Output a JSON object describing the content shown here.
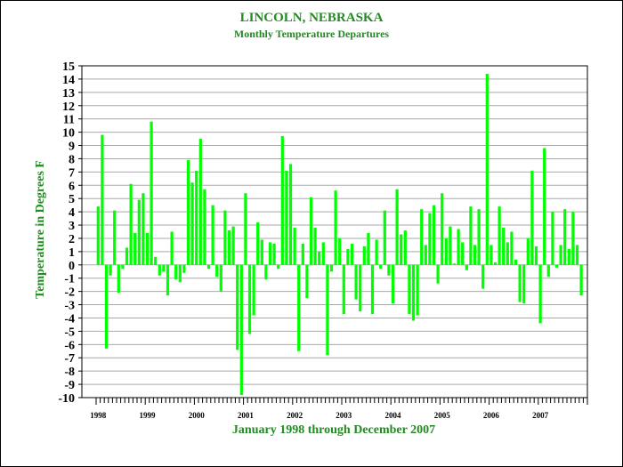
{
  "colors": {
    "title": "#228B22",
    "bar": "#00FF00",
    "grid": "#A9A9A9",
    "axis": "#000000",
    "frame": "#000000"
  },
  "chart_data": {
    "type": "bar",
    "title": "LINCOLN, NEBRASKA",
    "subtitle": "Monthly Temperature Departures",
    "xlabel": "January 1998 through December 2007",
    "ylabel": "Temperature in Degrees F",
    "ylim": [
      -10,
      15
    ],
    "yticks": [
      15,
      14,
      13,
      12,
      11,
      10,
      9,
      8,
      7,
      6,
      5,
      4,
      3,
      2,
      1,
      0,
      -1,
      -2,
      -3,
      -4,
      -5,
      -6,
      -7,
      -8,
      -9,
      -10
    ],
    "grid": true,
    "year_labels": [
      "1998",
      "1999",
      "2000",
      "2001",
      "2002",
      "2003",
      "2004",
      "2005",
      "2006",
      "2007"
    ],
    "values": [
      4.4,
      9.8,
      -6.3,
      -0.8,
      4.1,
      -2.1,
      -0.3,
      1.3,
      6.1,
      2.4,
      4.9,
      5.4,
      2.4,
      10.8,
      0.6,
      -0.8,
      -0.5,
      -2.3,
      2.5,
      -1.1,
      -1.3,
      -0.6,
      7.9,
      6.2,
      7.1,
      9.5,
      5.7,
      -0.3,
      4.5,
      -0.9,
      -2.0,
      4.1,
      2.6,
      2.9,
      -6.4,
      -9.8,
      5.4,
      -5.2,
      -3.8,
      3.2,
      1.9,
      -1.1,
      1.7,
      1.6,
      -0.3,
      9.7,
      7.1,
      7.6,
      2.8,
      -6.5,
      1.6,
      -2.5,
      5.1,
      2.8,
      1.0,
      1.7,
      -6.8,
      -0.5,
      5.6,
      2.0,
      -3.7,
      1.2,
      1.6,
      -2.6,
      -3.5,
      1.4,
      2.4,
      -3.7,
      1.9,
      -0.3,
      4.1,
      -0.8,
      -2.9,
      5.7,
      2.3,
      2.6,
      -3.7,
      -4.2,
      -3.8,
      4.2,
      1.5,
      3.9,
      4.5,
      -1.4,
      5.4,
      2.0,
      2.9,
      0.1,
      2.7,
      1.7,
      -0.4,
      4.4,
      1.5,
      4.2,
      -1.8,
      14.4,
      1.5,
      0.2,
      4.4,
      2.8,
      1.7,
      2.5,
      0.4,
      -2.8,
      -2.9,
      2.0,
      7.1,
      1.4,
      -4.4,
      8.8,
      -0.9,
      4.0,
      -0.2,
      1.5,
      4.2,
      1.2,
      4.0,
      1.5,
      -2.3,
      0.0
    ]
  }
}
